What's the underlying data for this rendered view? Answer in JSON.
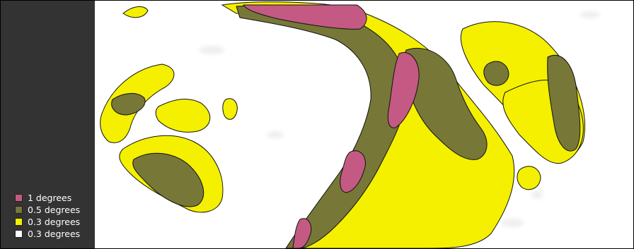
{
  "legend": {
    "items": [
      {
        "label": "1 degrees",
        "color": "#c45a83"
      },
      {
        "label": "0.5 degrees",
        "color": "#777738"
      },
      {
        "label": "0.3 degrees",
        "color": "#f4f000"
      },
      {
        "label": "",
        "color": "#ffffff"
      }
    ],
    "white_label": "0.3 degrees"
  },
  "colors": {
    "sidebar": "#333333",
    "background": "#ffffff",
    "outline": "#111111",
    "low": "#f4f000",
    "mid": "#777738",
    "high": "#c45a83"
  }
}
